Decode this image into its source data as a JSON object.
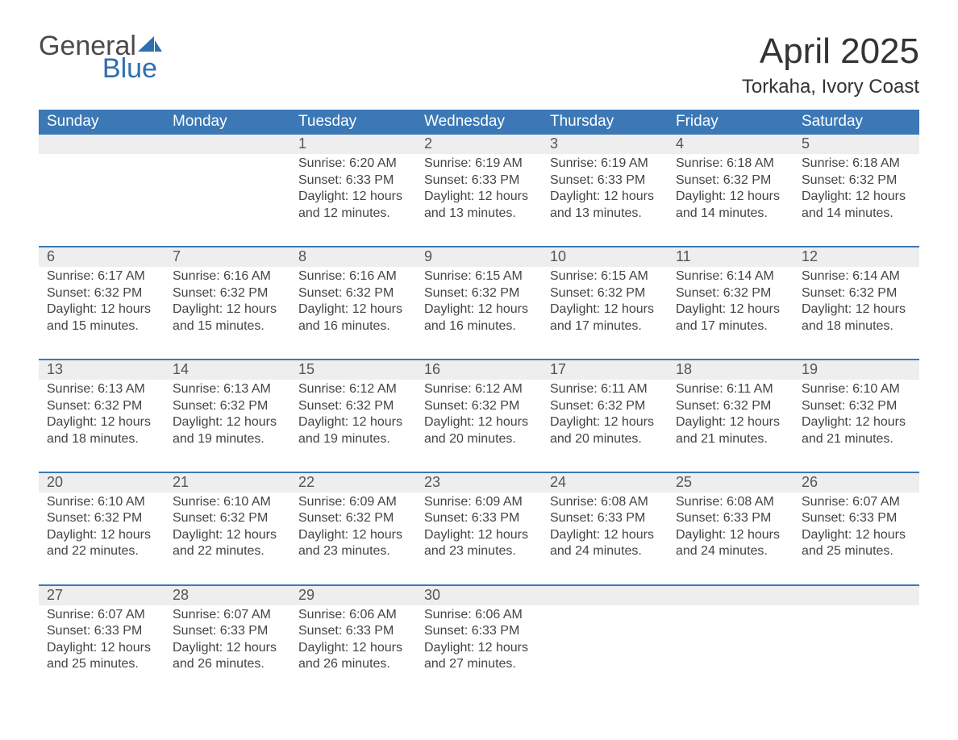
{
  "brand": {
    "text1": "General",
    "text2": "Blue",
    "icon_color": "#2f6fb0",
    "text_color_general": "#4a4a4a"
  },
  "title": "April 2025",
  "location": "Torkaha, Ivory Coast",
  "colors": {
    "header_bg": "#3b78b5",
    "header_text": "#ffffff",
    "daynum_bg": "#eeeeee",
    "body_text": "#444444",
    "background": "#ffffff",
    "week_divider": "#3b78b5"
  },
  "typography": {
    "title_fontsize": 44,
    "location_fontsize": 24,
    "dayheader_fontsize": 19,
    "daynum_fontsize": 18,
    "daybody_fontsize": 16
  },
  "day_headers": [
    "Sunday",
    "Monday",
    "Tuesday",
    "Wednesday",
    "Thursday",
    "Friday",
    "Saturday"
  ],
  "weeks": [
    [
      {
        "empty": true
      },
      {
        "empty": true
      },
      {
        "num": "1",
        "sunrise": "Sunrise: 6:20 AM",
        "sunset": "Sunset: 6:33 PM",
        "daylight": "Daylight: 12 hours and 12 minutes."
      },
      {
        "num": "2",
        "sunrise": "Sunrise: 6:19 AM",
        "sunset": "Sunset: 6:33 PM",
        "daylight": "Daylight: 12 hours and 13 minutes."
      },
      {
        "num": "3",
        "sunrise": "Sunrise: 6:19 AM",
        "sunset": "Sunset: 6:33 PM",
        "daylight": "Daylight: 12 hours and 13 minutes."
      },
      {
        "num": "4",
        "sunrise": "Sunrise: 6:18 AM",
        "sunset": "Sunset: 6:32 PM",
        "daylight": "Daylight: 12 hours and 14 minutes."
      },
      {
        "num": "5",
        "sunrise": "Sunrise: 6:18 AM",
        "sunset": "Sunset: 6:32 PM",
        "daylight": "Daylight: 12 hours and 14 minutes."
      }
    ],
    [
      {
        "num": "6",
        "sunrise": "Sunrise: 6:17 AM",
        "sunset": "Sunset: 6:32 PM",
        "daylight": "Daylight: 12 hours and 15 minutes."
      },
      {
        "num": "7",
        "sunrise": "Sunrise: 6:16 AM",
        "sunset": "Sunset: 6:32 PM",
        "daylight": "Daylight: 12 hours and 15 minutes."
      },
      {
        "num": "8",
        "sunrise": "Sunrise: 6:16 AM",
        "sunset": "Sunset: 6:32 PM",
        "daylight": "Daylight: 12 hours and 16 minutes."
      },
      {
        "num": "9",
        "sunrise": "Sunrise: 6:15 AM",
        "sunset": "Sunset: 6:32 PM",
        "daylight": "Daylight: 12 hours and 16 minutes."
      },
      {
        "num": "10",
        "sunrise": "Sunrise: 6:15 AM",
        "sunset": "Sunset: 6:32 PM",
        "daylight": "Daylight: 12 hours and 17 minutes."
      },
      {
        "num": "11",
        "sunrise": "Sunrise: 6:14 AM",
        "sunset": "Sunset: 6:32 PM",
        "daylight": "Daylight: 12 hours and 17 minutes."
      },
      {
        "num": "12",
        "sunrise": "Sunrise: 6:14 AM",
        "sunset": "Sunset: 6:32 PM",
        "daylight": "Daylight: 12 hours and 18 minutes."
      }
    ],
    [
      {
        "num": "13",
        "sunrise": "Sunrise: 6:13 AM",
        "sunset": "Sunset: 6:32 PM",
        "daylight": "Daylight: 12 hours and 18 minutes."
      },
      {
        "num": "14",
        "sunrise": "Sunrise: 6:13 AM",
        "sunset": "Sunset: 6:32 PM",
        "daylight": "Daylight: 12 hours and 19 minutes."
      },
      {
        "num": "15",
        "sunrise": "Sunrise: 6:12 AM",
        "sunset": "Sunset: 6:32 PM",
        "daylight": "Daylight: 12 hours and 19 minutes."
      },
      {
        "num": "16",
        "sunrise": "Sunrise: 6:12 AM",
        "sunset": "Sunset: 6:32 PM",
        "daylight": "Daylight: 12 hours and 20 minutes."
      },
      {
        "num": "17",
        "sunrise": "Sunrise: 6:11 AM",
        "sunset": "Sunset: 6:32 PM",
        "daylight": "Daylight: 12 hours and 20 minutes."
      },
      {
        "num": "18",
        "sunrise": "Sunrise: 6:11 AM",
        "sunset": "Sunset: 6:32 PM",
        "daylight": "Daylight: 12 hours and 21 minutes."
      },
      {
        "num": "19",
        "sunrise": "Sunrise: 6:10 AM",
        "sunset": "Sunset: 6:32 PM",
        "daylight": "Daylight: 12 hours and 21 minutes."
      }
    ],
    [
      {
        "num": "20",
        "sunrise": "Sunrise: 6:10 AM",
        "sunset": "Sunset: 6:32 PM",
        "daylight": "Daylight: 12 hours and 22 minutes."
      },
      {
        "num": "21",
        "sunrise": "Sunrise: 6:10 AM",
        "sunset": "Sunset: 6:32 PM",
        "daylight": "Daylight: 12 hours and 22 minutes."
      },
      {
        "num": "22",
        "sunrise": "Sunrise: 6:09 AM",
        "sunset": "Sunset: 6:32 PM",
        "daylight": "Daylight: 12 hours and 23 minutes."
      },
      {
        "num": "23",
        "sunrise": "Sunrise: 6:09 AM",
        "sunset": "Sunset: 6:33 PM",
        "daylight": "Daylight: 12 hours and 23 minutes."
      },
      {
        "num": "24",
        "sunrise": "Sunrise: 6:08 AM",
        "sunset": "Sunset: 6:33 PM",
        "daylight": "Daylight: 12 hours and 24 minutes."
      },
      {
        "num": "25",
        "sunrise": "Sunrise: 6:08 AM",
        "sunset": "Sunset: 6:33 PM",
        "daylight": "Daylight: 12 hours and 24 minutes."
      },
      {
        "num": "26",
        "sunrise": "Sunrise: 6:07 AM",
        "sunset": "Sunset: 6:33 PM",
        "daylight": "Daylight: 12 hours and 25 minutes."
      }
    ],
    [
      {
        "num": "27",
        "sunrise": "Sunrise: 6:07 AM",
        "sunset": "Sunset: 6:33 PM",
        "daylight": "Daylight: 12 hours and 25 minutes."
      },
      {
        "num": "28",
        "sunrise": "Sunrise: 6:07 AM",
        "sunset": "Sunset: 6:33 PM",
        "daylight": "Daylight: 12 hours and 26 minutes."
      },
      {
        "num": "29",
        "sunrise": "Sunrise: 6:06 AM",
        "sunset": "Sunset: 6:33 PM",
        "daylight": "Daylight: 12 hours and 26 minutes."
      },
      {
        "num": "30",
        "sunrise": "Sunrise: 6:06 AM",
        "sunset": "Sunset: 6:33 PM",
        "daylight": "Daylight: 12 hours and 27 minutes."
      },
      {
        "empty": true
      },
      {
        "empty": true
      },
      {
        "empty": true
      }
    ]
  ]
}
